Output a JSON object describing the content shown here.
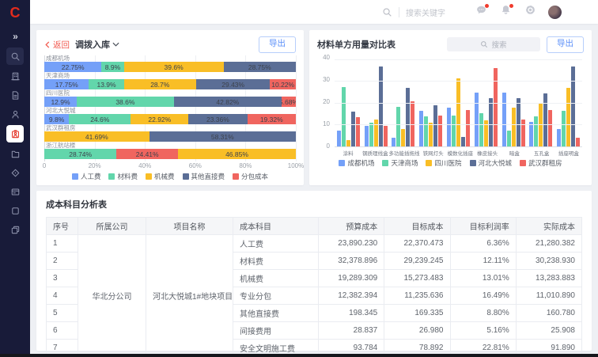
{
  "sidebar": {
    "logo_text": "C",
    "items": [
      {
        "id": "collapse",
        "icon": "double-chevron-right-icon",
        "boxed": false,
        "active": false
      },
      {
        "id": "search",
        "icon": "search-icon",
        "boxed": true,
        "active": false
      },
      {
        "id": "organization",
        "icon": "building-icon",
        "boxed": false,
        "active": false
      },
      {
        "id": "documents",
        "icon": "document-icon",
        "boxed": false,
        "active": false
      },
      {
        "id": "members",
        "icon": "user-icon",
        "boxed": false,
        "active": false
      },
      {
        "id": "projects",
        "icon": "badge-icon",
        "boxed": false,
        "active": true
      },
      {
        "id": "files",
        "icon": "folder-icon",
        "boxed": false,
        "active": false
      },
      {
        "id": "assets",
        "icon": "diamond-icon",
        "boxed": false,
        "active": false
      },
      {
        "id": "cards",
        "icon": "card-icon",
        "boxed": false,
        "active": false
      },
      {
        "id": "apps",
        "icon": "window-icon",
        "boxed": false,
        "active": false
      },
      {
        "id": "layers",
        "icon": "layers-icon",
        "boxed": false,
        "active": false
      }
    ]
  },
  "topbar": {
    "search_placeholder": "搜索关键字",
    "actions": [
      {
        "id": "messages",
        "icon": "chat-icon",
        "badge": true
      },
      {
        "id": "notifications",
        "icon": "bell-icon",
        "badge": true
      },
      {
        "id": "settings",
        "icon": "gear-icon",
        "badge": false
      },
      {
        "id": "profile",
        "icon": "avatar",
        "badge": false
      }
    ]
  },
  "left_panel": {
    "back_label": "返回",
    "title": "调拨入库",
    "export_label": "导出"
  },
  "right_panel": {
    "title": "材料单方用量对比表",
    "search_placeholder": "搜索",
    "export_label": "导出"
  },
  "chart_data": {
    "left_chart": {
      "type": "stacked-horizontal-bar",
      "series": [
        "人工费",
        "材料费",
        "机械费",
        "其他直接费",
        "分包成本"
      ],
      "colors": [
        "#74A0F8",
        "#62D6AB",
        "#F9BE26",
        "#5B6E96",
        "#F0655F"
      ],
      "x_ticks": [
        "0",
        "20%",
        "40%",
        "60%",
        "80%",
        "100%"
      ],
      "unit": "%",
      "rows": [
        {
          "name": "成都机场",
          "segments": [
            [
              0,
              22.75
            ],
            [
              1,
              8.9
            ],
            [
              2,
              39.6
            ],
            [
              3,
              28.75
            ]
          ]
        },
        {
          "name": "天津商场",
          "segments": [
            [
              0,
              17.75
            ],
            [
              1,
              13.9
            ],
            [
              2,
              28.7
            ],
            [
              3,
              29.43
            ],
            [
              4,
              10.22
            ]
          ]
        },
        {
          "name": "四川医院",
          "segments": [
            [
              0,
              12.9
            ],
            [
              1,
              38.6
            ],
            [
              3,
              42.82
            ],
            [
              4,
              5.68
            ]
          ]
        },
        {
          "name": "河北大悦城",
          "segments": [
            [
              0,
              9.8
            ],
            [
              1,
              24.6
            ],
            [
              2,
              22.92
            ],
            [
              3,
              23.36
            ],
            [
              4,
              19.32
            ]
          ]
        },
        {
          "name": "武汉群租房",
          "segments": [
            [
              2,
              41.69
            ],
            [
              3,
              58.31
            ]
          ]
        },
        {
          "name": "浙江航站楼",
          "segments": [
            [
              1,
              28.74
            ],
            [
              4,
              24.41
            ],
            [
              2,
              46.85
            ]
          ]
        }
      ],
      "legend_position": "bottom"
    },
    "right_chart": {
      "type": "bar",
      "categories": [
        "涂料",
        "钢质理线盒",
        "多功能插拖线",
        "铁网灯头",
        "模数化插座",
        "橡皮接头",
        "暗盒",
        "五孔盒",
        "插座明盒"
      ],
      "y_ticks": [
        0,
        10,
        20,
        30,
        40
      ],
      "ylim": [
        0,
        40
      ],
      "series": [
        {
          "name": "成都机场",
          "color": "#74A0F8",
          "values": [
            7.5,
            9.5,
            4,
            16.5,
            18,
            25,
            25,
            11.5,
            8
          ]
        },
        {
          "name": "天津商场",
          "color": "#62D6AB",
          "values": [
            27.5,
            11,
            18.5,
            14,
            14.5,
            15.5,
            7.5,
            14,
            16.5
          ]
        },
        {
          "name": "四川医院",
          "color": "#F9BE26",
          "values": [
            3,
            12.5,
            8,
            11,
            31.5,
            12,
            18,
            20,
            27
          ]
        },
        {
          "name": "河北大悦城",
          "color": "#5B6E96",
          "values": [
            16,
            37,
            27,
            19,
            4.5,
            22.5,
            22.5,
            24.5,
            37
          ]
        },
        {
          "name": "武汉群租房",
          "color": "#F0655F",
          "values": [
            13.5,
            9.5,
            21,
            14.5,
            17,
            36.5,
            12.5,
            17,
            4
          ]
        }
      ],
      "grid": true,
      "legend_position": "bottom"
    }
  },
  "table_panel": {
    "title": "成本科目分析表",
    "headers": [
      "序号",
      "所属公司",
      "项目名称",
      "成本科目",
      "预算成本",
      "目标成本",
      "目标利润率",
      "实际成本"
    ],
    "company": "华北分公司",
    "project": "河北大悦城1#地块项目",
    "rows": [
      {
        "seq": "1",
        "subject": "人工费",
        "budget": "23,890.230",
        "target": "22,370.473",
        "margin": "6.36%",
        "actual": "21,280.382"
      },
      {
        "seq": "2",
        "subject": "材料费",
        "budget": "32,378.896",
        "target": "29,239.245",
        "margin": "12.11%",
        "actual": "30,238.930"
      },
      {
        "seq": "3",
        "subject": "机械费",
        "budget": "19,289.309",
        "target": "15,273.483",
        "margin": "13.01%",
        "actual": "13,283.883"
      },
      {
        "seq": "4",
        "subject": "专业分包",
        "budget": "12,382.394",
        "target": "11,235.636",
        "margin": "16.49%",
        "actual": "11,010.890"
      },
      {
        "seq": "5",
        "subject": "其他直接费",
        "budget": "198.345",
        "target": "169.335",
        "margin": "8.80%",
        "actual": "160.780"
      },
      {
        "seq": "6",
        "subject": "间接费用",
        "budget": "28.837",
        "target": "26.980",
        "margin": "5.16%",
        "actual": "25.908"
      },
      {
        "seq": "7",
        "subject": "安全文明施工费",
        "budget": "93.784",
        "target": "78.892",
        "margin": "22.81%",
        "actual": "91.890"
      }
    ]
  },
  "colors": {
    "sidebar_bg": "#181B39",
    "accent_red": "#E22B1D",
    "link_red": "#F25B50",
    "button_blue": "#5B8FF9",
    "page_bg": "#EEF0F4"
  }
}
